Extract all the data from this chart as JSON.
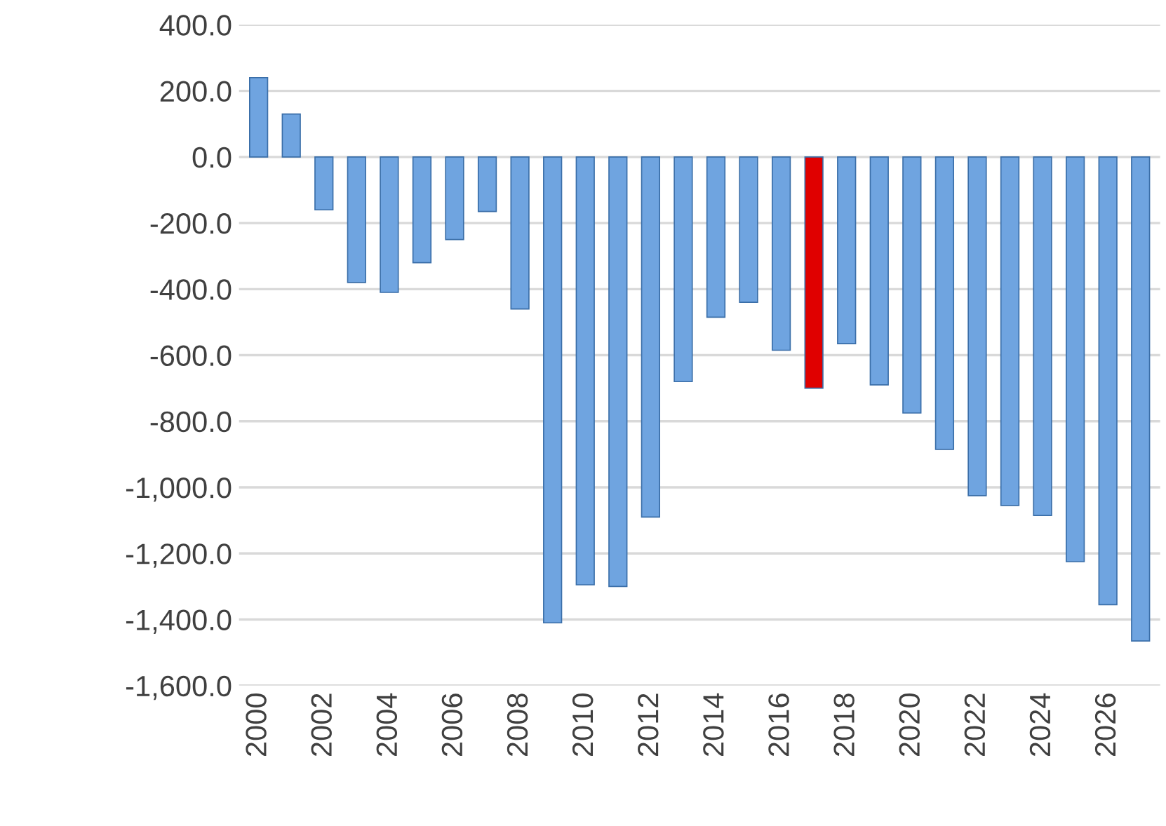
{
  "chart_data": {
    "type": "bar",
    "categories": [
      "2000",
      null,
      "2002",
      null,
      "2004",
      null,
      "2006",
      null,
      "2008",
      null,
      "2010",
      null,
      "2012",
      null,
      "2014",
      null,
      "2016",
      null,
      "2018",
      null,
      "2020",
      null,
      "2022",
      null,
      "2024",
      null,
      "2026",
      null
    ],
    "values": [
      240,
      130,
      -160,
      -380,
      -410,
      -320,
      -250,
      -165,
      -460,
      -1410,
      -1295,
      -1300,
      -1090,
      -680,
      -485,
      -440,
      -585,
      -700,
      -565,
      -690,
      -775,
      -885,
      -1025,
      -1055,
      -1085,
      -1225,
      -1355,
      -1465
    ],
    "colors": [
      "#6fa4e0",
      "#6fa4e0",
      "#6fa4e0",
      "#6fa4e0",
      "#6fa4e0",
      "#6fa4e0",
      "#6fa4e0",
      "#6fa4e0",
      "#6fa4e0",
      "#6fa4e0",
      "#6fa4e0",
      "#6fa4e0",
      "#6fa4e0",
      "#6fa4e0",
      "#6fa4e0",
      "#6fa4e0",
      "#6fa4e0",
      "#e00000",
      "#6fa4e0",
      "#6fa4e0",
      "#6fa4e0",
      "#6fa4e0",
      "#6fa4e0",
      "#6fa4e0",
      "#6fa4e0",
      "#6fa4e0",
      "#6fa4e0",
      "#6fa4e0"
    ],
    "ylim": [
      -1600,
      400
    ],
    "yticks": [
      {
        "value": 400,
        "label": "400.0"
      },
      {
        "value": 200,
        "label": "200.0"
      },
      {
        "value": 0,
        "label": "0.0"
      },
      {
        "value": -200,
        "label": "-200.0"
      },
      {
        "value": -400,
        "label": "-400.0"
      },
      {
        "value": -600,
        "label": "-600.0"
      },
      {
        "value": -800,
        "label": "-800.0"
      },
      {
        "value": -1000,
        "label": "-1,000.0"
      },
      {
        "value": -1200,
        "label": "-1,200.0"
      },
      {
        "value": -1400,
        "label": "-1,400.0"
      },
      {
        "value": -1600,
        "label": "-1,600.0"
      }
    ],
    "grid": "y"
  }
}
